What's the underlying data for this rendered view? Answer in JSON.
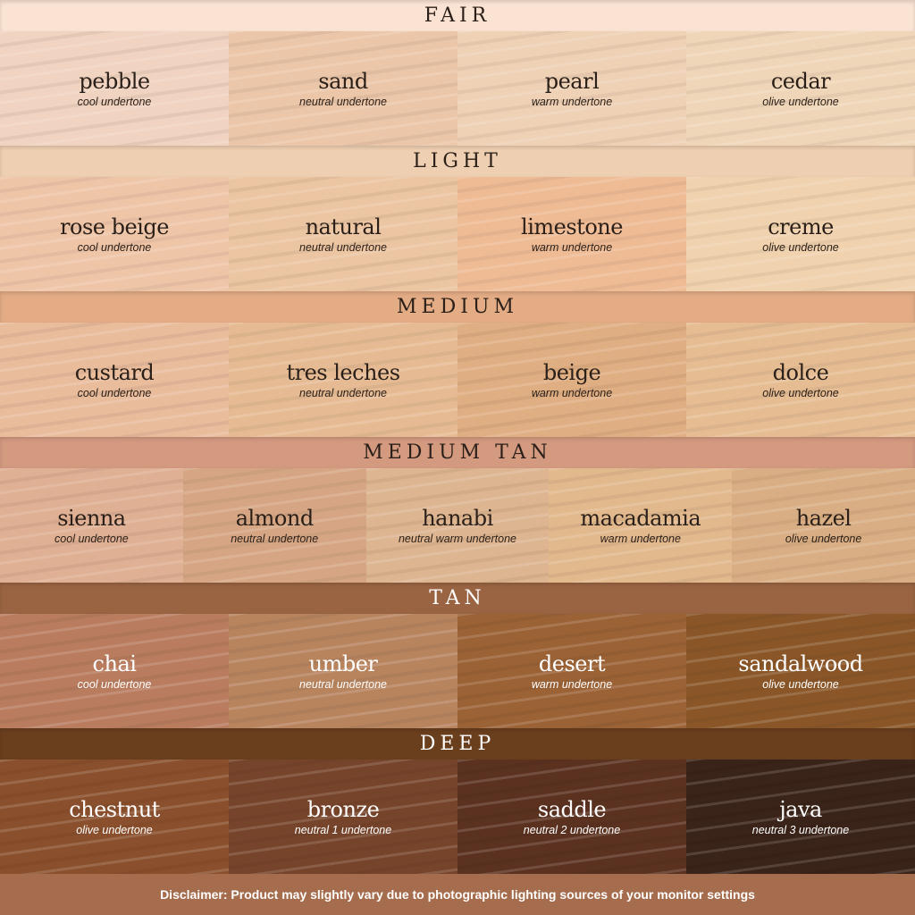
{
  "groups": [
    {
      "title": "FAIR",
      "band": "#fbe3d3",
      "text": "dark",
      "shades": [
        {
          "name": "pebble",
          "undertone": "cool undertone",
          "color": "#f0d3c0"
        },
        {
          "name": "sand",
          "undertone": "neutral undertone",
          "color": "#ebc6a8"
        },
        {
          "name": "pearl",
          "undertone": "warm undertone",
          "color": "#efd1b5"
        },
        {
          "name": "cedar",
          "undertone": "olive undertone",
          "color": "#f0d6b8"
        }
      ]
    },
    {
      "title": "LIGHT",
      "band": "#efcfb1",
      "text": "dark",
      "shades": [
        {
          "name": "rose beige",
          "undertone": "cool undertone",
          "color": "#efc5a8"
        },
        {
          "name": "natural",
          "undertone": "neutral undertone",
          "color": "#ecc5a2"
        },
        {
          "name": "limestone",
          "undertone": "warm undertone",
          "color": "#efbb95"
        },
        {
          "name": "creme",
          "undertone": "olive undertone",
          "color": "#f0d2ae"
        }
      ]
    },
    {
      "title": "MEDIUM",
      "band": "#e3ac85",
      "text": "dark",
      "shades": [
        {
          "name": "custard",
          "undertone": "cool undertone",
          "color": "#e9bc9c"
        },
        {
          "name": "tres leches",
          "undertone": "neutral undertone",
          "color": "#e6bb94"
        },
        {
          "name": "beige",
          "undertone": "warm undertone",
          "color": "#dfae82"
        },
        {
          "name": "dolce",
          "undertone": "olive undertone",
          "color": "#e6bd93"
        }
      ]
    },
    {
      "title": "MEDIUM TAN",
      "band": "#d49a80",
      "text": "dark",
      "shades": [
        {
          "name": "sienna",
          "undertone": "cool undertone",
          "color": "#dfb093"
        },
        {
          "name": "almond",
          "undertone": "neutral undertone",
          "color": "#d6a684"
        },
        {
          "name": "hanabi",
          "undertone": "neutral warm undertone",
          "color": "#ddb590"
        },
        {
          "name": "macadamia",
          "undertone": "warm undertone",
          "color": "#e2b88d"
        },
        {
          "name": "hazel",
          "undertone": "olive undertone",
          "color": "#d9ae84"
        }
      ]
    },
    {
      "title": "TAN",
      "band": "#9a6443",
      "text": "light",
      "shades": [
        {
          "name": "chai",
          "undertone": "cool undertone",
          "color": "#b97c5f"
        },
        {
          "name": "umber",
          "undertone": "neutral undertone",
          "color": "#b7845e"
        },
        {
          "name": "desert",
          "undertone": "warm undertone",
          "color": "#9b6236"
        },
        {
          "name": "sandalwood",
          "undertone": "olive undertone",
          "color": "#8a5628"
        }
      ]
    },
    {
      "title": "DEEP",
      "band": "#6a3f1e",
      "text": "light",
      "shades": [
        {
          "name": "chestnut",
          "undertone": "olive undertone",
          "color": "#8a4f2c"
        },
        {
          "name": "bronze",
          "undertone": "neutral 1 undertone",
          "color": "#76442a"
        },
        {
          "name": "saddle",
          "undertone": "neutral 2 undertone",
          "color": "#5b3120"
        },
        {
          "name": "java",
          "undertone": "neutral 3 undertone",
          "color": "#3a2318"
        }
      ]
    }
  ],
  "disclaimer": "Disclaimer: Product may slightly vary due to photographic lighting sources of your monitor settings"
}
